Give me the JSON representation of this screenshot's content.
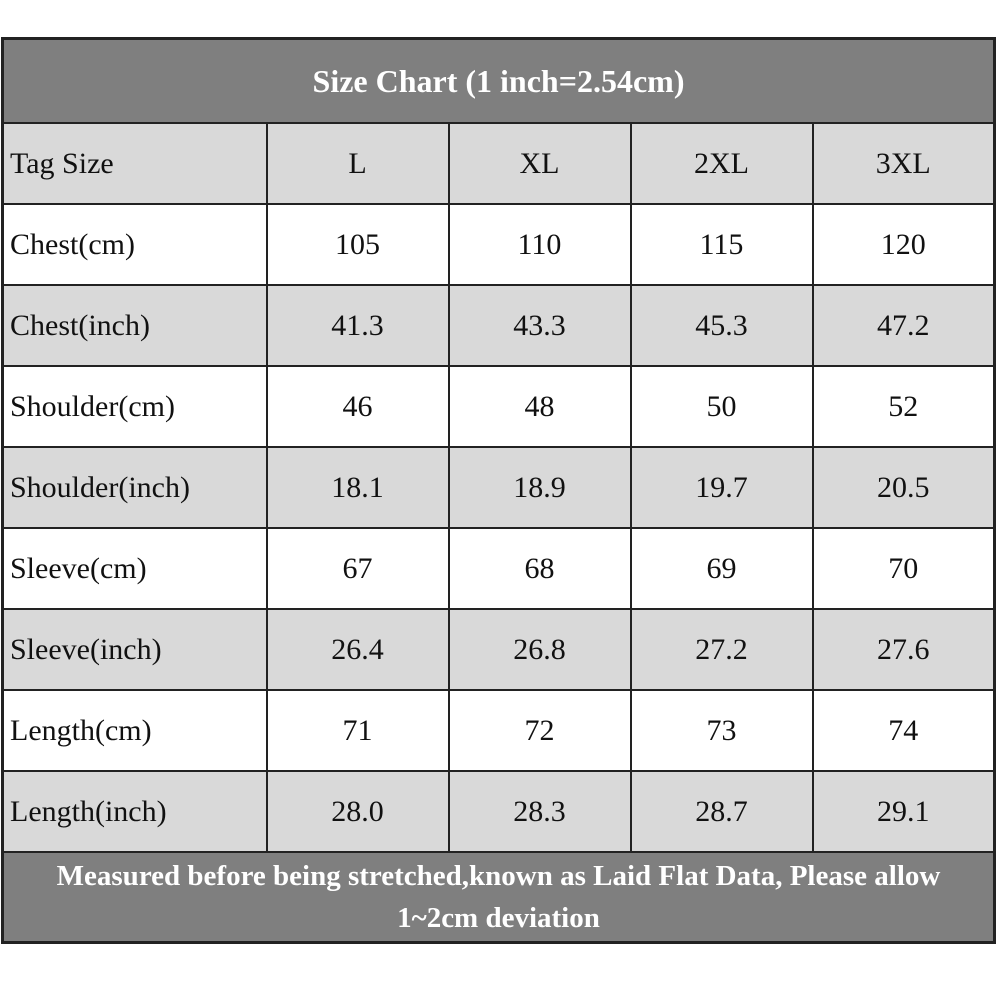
{
  "table": {
    "title": "Size Chart (1 inch=2.54cm)",
    "header": [
      "Tag Size",
      "L",
      "XL",
      "2XL",
      "3XL"
    ],
    "rows": [
      [
        "Chest(cm)",
        "105",
        "110",
        "115",
        "120"
      ],
      [
        "Chest(inch)",
        "41.3",
        "43.3",
        "45.3",
        "47.2"
      ],
      [
        "Shoulder(cm)",
        "46",
        "48",
        "50",
        "52"
      ],
      [
        "Shoulder(inch)",
        "18.1",
        "18.9",
        "19.7",
        "20.5"
      ],
      [
        "Sleeve(cm)",
        "67",
        "68",
        "69",
        "70"
      ],
      [
        "Sleeve(inch)",
        "26.4",
        "26.8",
        "27.2",
        "27.6"
      ],
      [
        "Length(cm)",
        "71",
        "72",
        "73",
        "74"
      ],
      [
        "Length(inch)",
        "28.0",
        "28.3",
        "28.7",
        "29.1"
      ]
    ],
    "footer": "Measured before being stretched,known as Laid Flat Data, Please allow 1~2cm deviation"
  }
}
